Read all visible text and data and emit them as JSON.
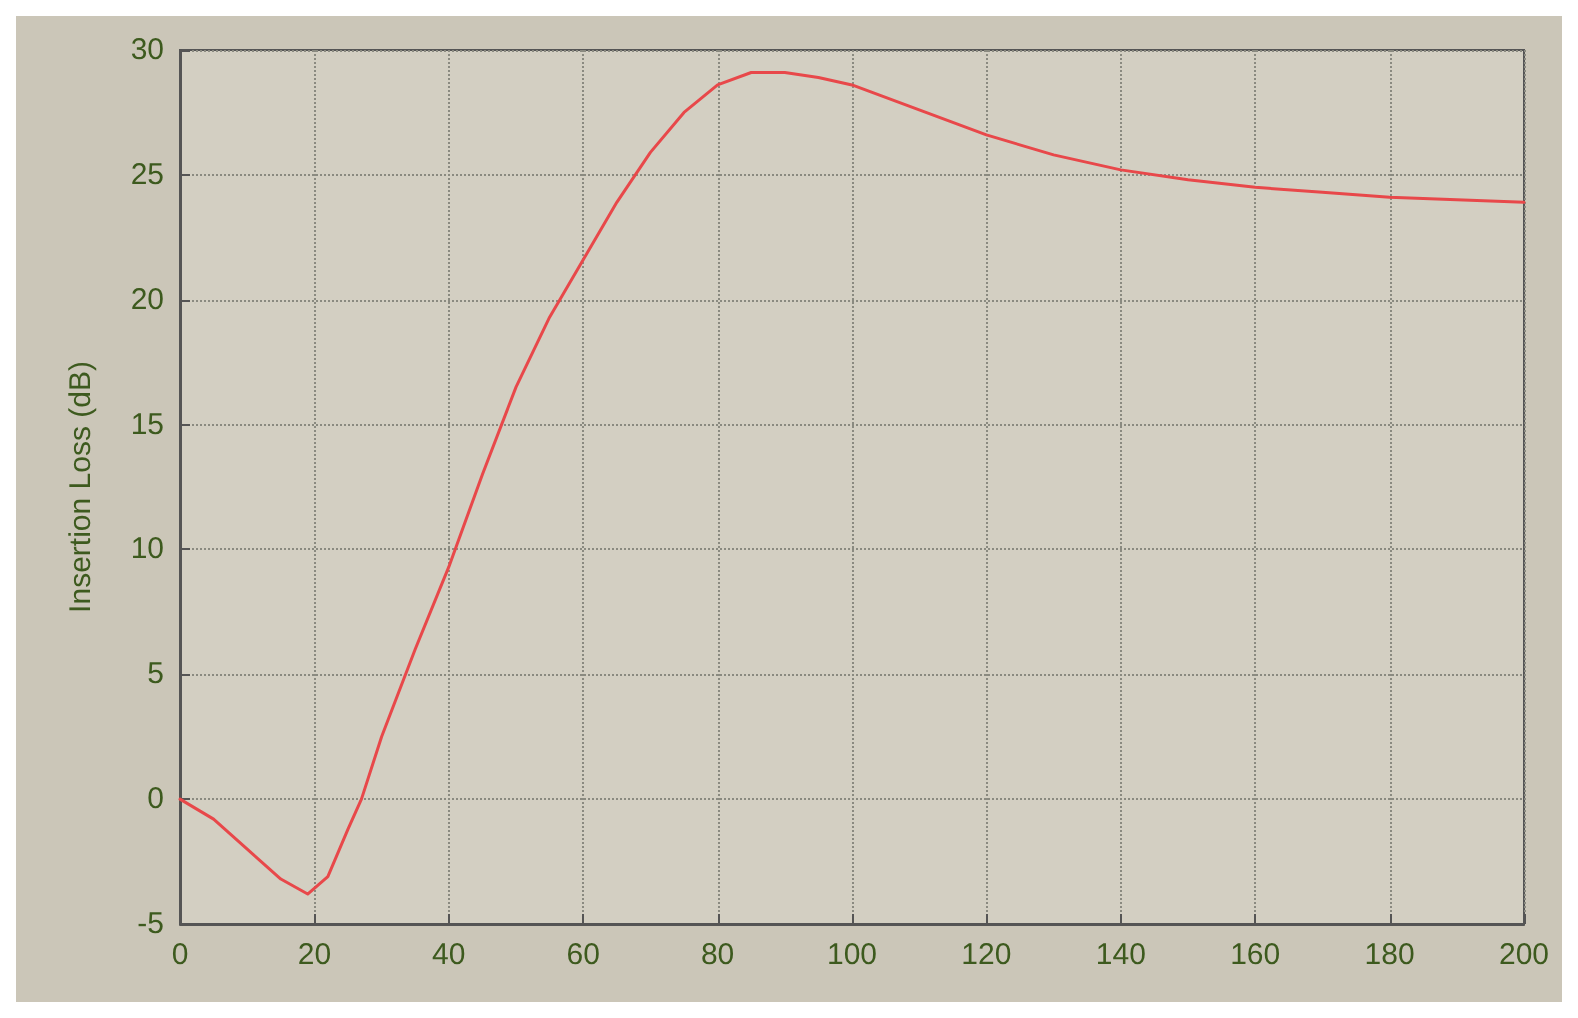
{
  "chart_data": {
    "type": "line",
    "ylabel": "Insertion Loss (dB)",
    "x": [
      0,
      5,
      10,
      15,
      19,
      22,
      25,
      27,
      30,
      35,
      40,
      45,
      50,
      55,
      60,
      65,
      70,
      75,
      80,
      85,
      90,
      95,
      100,
      110,
      120,
      130,
      140,
      150,
      160,
      170,
      180,
      190,
      200
    ],
    "series": [
      {
        "color": "#e8484a",
        "values": [
          0,
          -0.8,
          -2,
          -3.2,
          -3.8,
          -3.1,
          -1.2,
          0,
          2.5,
          6,
          9.3,
          13,
          16.5,
          19.3,
          21.6,
          23.9,
          25.9,
          27.5,
          28.6,
          29.1,
          29.1,
          28.9,
          28.6,
          27.6,
          26.6,
          25.8,
          25.2,
          24.8,
          24.5,
          24.3,
          24.1,
          24,
          23.9
        ]
      }
    ],
    "xlim": [
      0,
      200
    ],
    "xticks": [
      0,
      20,
      40,
      60,
      80,
      100,
      120,
      140,
      160,
      180,
      200
    ],
    "ylim": [
      -5,
      30
    ],
    "yticks": [
      -5,
      0,
      5,
      10,
      15,
      20,
      25,
      30
    ],
    "grid": true,
    "marker": "none",
    "line_style": "solid"
  }
}
